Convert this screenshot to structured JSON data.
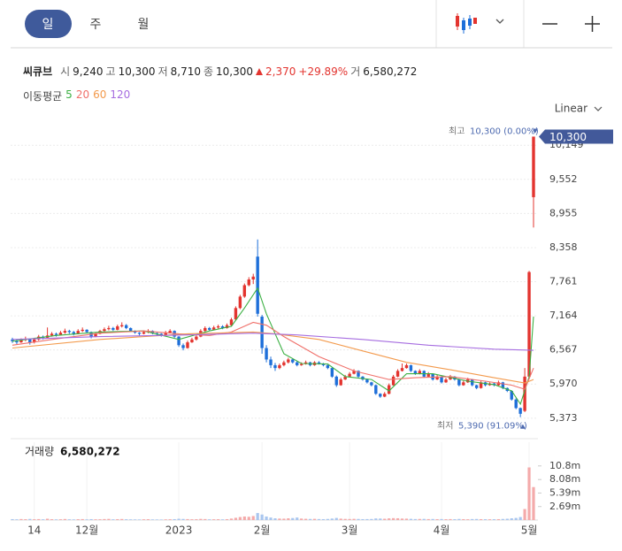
{
  "header": {
    "tabs": [
      "일",
      "주",
      "월"
    ]
  },
  "quote": {
    "name": "씨큐브",
    "open_label": "시",
    "open": "9,240",
    "high_label": "고",
    "high": "10,300",
    "low_label": "저",
    "low": "8,710",
    "close_label": "종",
    "close": "10,300",
    "change": "2,370",
    "change_pct": "+29.89%",
    "volume_label": "거",
    "volume": "6,580,272"
  },
  "ma_legend_title": "이동평균",
  "scale_label": "Linear",
  "chart_data": {
    "type": "candlestick",
    "up_color": "#e3342f",
    "down_color": "#1e6fd9",
    "ylim": [
      5200,
      10400
    ],
    "yticks": [
      {
        "value": 5373,
        "label": "5,373"
      },
      {
        "value": 5970,
        "label": "5,970"
      },
      {
        "value": 6567,
        "label": "6,567"
      },
      {
        "value": 7164,
        "label": "7,164"
      },
      {
        "value": 7761,
        "label": "7,761"
      },
      {
        "value": 8358,
        "label": "8,358"
      },
      {
        "value": 8955,
        "label": "8,955"
      },
      {
        "value": 9552,
        "label": "9,552"
      },
      {
        "value": 10149,
        "label": "10,149"
      }
    ],
    "xticks": [
      {
        "value": 5,
        "label": "14"
      },
      {
        "value": 17,
        "label": "12월"
      },
      {
        "value": 38,
        "label": "2023"
      },
      {
        "value": 57,
        "label": "2월"
      },
      {
        "value": 77,
        "label": "3월"
      },
      {
        "value": 98,
        "label": "4월"
      },
      {
        "value": 118,
        "label": "5월"
      }
    ],
    "last_price": {
      "value": 10300,
      "label": "10,300",
      "color": "#42599a"
    },
    "annotations": {
      "high_label": "최고",
      "high_text": "10,300 (0.00%)",
      "high_value": 10300,
      "low_label": "최저",
      "low_text": "5,390 (91.09%)",
      "low_value": 5390
    },
    "candles": [
      [
        6750,
        6780,
        6690,
        6720
      ],
      [
        6720,
        6750,
        6670,
        6700
      ],
      [
        6700,
        6770,
        6690,
        6740
      ],
      [
        6740,
        6800,
        6720,
        6760
      ],
      [
        6760,
        6770,
        6660,
        6700
      ],
      [
        6700,
        6780,
        6680,
        6750
      ],
      [
        6750,
        6830,
        6730,
        6800
      ],
      [
        6800,
        6820,
        6750,
        6780
      ],
      [
        6780,
        6960,
        6770,
        6820
      ],
      [
        6820,
        6880,
        6800,
        6850
      ],
      [
        6850,
        6870,
        6800,
        6830
      ],
      [
        6830,
        6900,
        6820,
        6870
      ],
      [
        6870,
        6940,
        6850,
        6900
      ],
      [
        6900,
        6920,
        6850,
        6880
      ],
      [
        6880,
        6900,
        6820,
        6850
      ],
      [
        6850,
        6930,
        6840,
        6900
      ],
      [
        6900,
        6960,
        6880,
        6920
      ],
      [
        6920,
        6930,
        6860,
        6880
      ],
      [
        6880,
        6890,
        6770,
        6800
      ],
      [
        6800,
        6870,
        6790,
        6850
      ],
      [
        6850,
        6920,
        6840,
        6900
      ],
      [
        6900,
        6960,
        6880,
        6930
      ],
      [
        6930,
        6990,
        6910,
        6950
      ],
      [
        6950,
        6970,
        6900,
        6920
      ],
      [
        6920,
        7010,
        6910,
        6980
      ],
      [
        6980,
        7050,
        6960,
        7000
      ],
      [
        7000,
        7020,
        6930,
        6950
      ],
      [
        6950,
        6960,
        6880,
        6900
      ],
      [
        6900,
        6910,
        6850,
        6870
      ],
      [
        6870,
        6880,
        6820,
        6850
      ],
      [
        6850,
        6910,
        6840,
        6880
      ],
      [
        6880,
        6930,
        6860,
        6900
      ],
      [
        6900,
        6910,
        6840,
        6860
      ],
      [
        6860,
        6880,
        6820,
        6850
      ],
      [
        6850,
        6860,
        6800,
        6830
      ],
      [
        6830,
        6900,
        6820,
        6870
      ],
      [
        6870,
        6930,
        6860,
        6900
      ],
      [
        6900,
        6910,
        6780,
        6800
      ],
      [
        6800,
        6810,
        6620,
        6650
      ],
      [
        6650,
        6680,
        6560,
        6600
      ],
      [
        6600,
        6730,
        6590,
        6700
      ],
      [
        6700,
        6780,
        6690,
        6750
      ],
      [
        6750,
        6830,
        6730,
        6800
      ],
      [
        6800,
        6930,
        6790,
        6900
      ],
      [
        6900,
        6980,
        6880,
        6950
      ],
      [
        6950,
        6970,
        6900,
        6920
      ],
      [
        6920,
        6990,
        6910,
        6960
      ],
      [
        6960,
        7010,
        6940,
        6980
      ],
      [
        6980,
        7000,
        6930,
        6950
      ],
      [
        6950,
        7030,
        6940,
        7000
      ],
      [
        7000,
        7130,
        6990,
        7100
      ],
      [
        7100,
        7330,
        7090,
        7300
      ],
      [
        7300,
        7530,
        7280,
        7500
      ],
      [
        7500,
        7730,
        7480,
        7700
      ],
      [
        7700,
        7840,
        7680,
        7800
      ],
      [
        7800,
        7900,
        7720,
        7850
      ],
      [
        8200,
        8500,
        7150,
        7200
      ],
      [
        7150,
        7180,
        6500,
        6600
      ],
      [
        6600,
        6650,
        6350,
        6400
      ],
      [
        6400,
        6450,
        6250,
        6300
      ],
      [
        6300,
        6340,
        6200,
        6250
      ],
      [
        6250,
        6330,
        6230,
        6300
      ],
      [
        6300,
        6380,
        6280,
        6350
      ],
      [
        6350,
        6430,
        6330,
        6400
      ],
      [
        6400,
        6420,
        6330,
        6350
      ],
      [
        6350,
        6370,
        6280,
        6300
      ],
      [
        6300,
        6350,
        6290,
        6320
      ],
      [
        6320,
        6380,
        6310,
        6350
      ],
      [
        6350,
        6360,
        6280,
        6300
      ],
      [
        6300,
        6370,
        6290,
        6350
      ],
      [
        6350,
        6370,
        6310,
        6330
      ],
      [
        6330,
        6340,
        6280,
        6300
      ],
      [
        6300,
        6310,
        6230,
        6250
      ],
      [
        6250,
        6260,
        6080,
        6100
      ],
      [
        6100,
        6120,
        5920,
        5950
      ],
      [
        5950,
        6080,
        5940,
        6050
      ],
      [
        6050,
        6130,
        6040,
        6100
      ],
      [
        6100,
        6180,
        6090,
        6150
      ],
      [
        6150,
        6230,
        6140,
        6200
      ],
      [
        6200,
        6210,
        6080,
        6100
      ],
      [
        6100,
        6110,
        6030,
        6050
      ],
      [
        6050,
        6060,
        5980,
        6000
      ],
      [
        6000,
        6010,
        5930,
        5950
      ],
      [
        5950,
        5960,
        5780,
        5800
      ],
      [
        5800,
        5810,
        5730,
        5750
      ],
      [
        5750,
        5830,
        5740,
        5800
      ],
      [
        5800,
        5980,
        5790,
        5950
      ],
      [
        5950,
        6130,
        5940,
        6100
      ],
      [
        6100,
        6230,
        6090,
        6200
      ],
      [
        6200,
        6330,
        6190,
        6250
      ],
      [
        6250,
        6330,
        6240,
        6300
      ],
      [
        6300,
        6310,
        6180,
        6200
      ],
      [
        6200,
        6210,
        6130,
        6150
      ],
      [
        6150,
        6230,
        6140,
        6200
      ],
      [
        6200,
        6210,
        6080,
        6100
      ],
      [
        6100,
        6180,
        6090,
        6150
      ],
      [
        6150,
        6160,
        6030,
        6050
      ],
      [
        6050,
        6130,
        6040,
        6100
      ],
      [
        6100,
        6110,
        5980,
        6000
      ],
      [
        6000,
        6080,
        5990,
        6050
      ],
      [
        6050,
        6130,
        6040,
        6100
      ],
      [
        6100,
        6110,
        6030,
        6050
      ],
      [
        6050,
        6060,
        5930,
        5950
      ],
      [
        5950,
        6030,
        5940,
        6000
      ],
      [
        6000,
        6080,
        5990,
        6050
      ],
      [
        6050,
        6060,
        5930,
        5950
      ],
      [
        5950,
        5960,
        5880,
        5900
      ],
      [
        5900,
        6030,
        5890,
        6000
      ],
      [
        6000,
        6010,
        5930,
        5950
      ],
      [
        5950,
        6000,
        5940,
        5980
      ],
      [
        5980,
        5990,
        5930,
        5950
      ],
      [
        5950,
        6030,
        5940,
        6000
      ],
      [
        6000,
        6010,
        5880,
        5900
      ],
      [
        5900,
        5910,
        5830,
        5850
      ],
      [
        5850,
        5860,
        5680,
        5700
      ],
      [
        5700,
        5720,
        5530,
        5550
      ],
      [
        5550,
        5560,
        5390,
        5450
      ],
      [
        5500,
        6250,
        5480,
        6100
      ],
      [
        6100,
        7950,
        6050,
        7930
      ],
      [
        9240,
        10300,
        8710,
        10300
      ]
    ],
    "moving_averages": [
      {
        "name": "5",
        "color": "#3cb043",
        "x": [
          0,
          10,
          20,
          30,
          38,
          45,
          50,
          53,
          56,
          58,
          62,
          66,
          72,
          76,
          82,
          86,
          90,
          96,
          104,
          110,
          114,
          116,
          118,
          119
        ],
        "values": [
          6720,
          6820,
          6880,
          6900,
          6750,
          6900,
          6980,
          7300,
          7650,
          7200,
          6500,
          6330,
          6320,
          6100,
          6050,
          5850,
          6150,
          6150,
          6020,
          5960,
          5850,
          5620,
          6100,
          7150
        ]
      },
      {
        "name": "20",
        "color": "#f0706a",
        "x": [
          0,
          10,
          20,
          30,
          38,
          45,
          50,
          55,
          58,
          62,
          70,
          78,
          86,
          92,
          100,
          108,
          114,
          117,
          119
        ],
        "values": [
          6650,
          6760,
          6860,
          6900,
          6850,
          6820,
          6880,
          7050,
          7000,
          6800,
          6450,
          6200,
          6050,
          6080,
          6100,
          6020,
          5950,
          5880,
          6250
        ]
      },
      {
        "name": "60",
        "color": "#f39a4c",
        "x": [
          0,
          20,
          40,
          55,
          60,
          70,
          80,
          90,
          100,
          110,
          117,
          119
        ],
        "values": [
          6600,
          6750,
          6850,
          6880,
          6850,
          6750,
          6550,
          6350,
          6220,
          6080,
          5990,
          6050
        ]
      },
      {
        "name": "120",
        "color": "#a66de0",
        "x": [
          0,
          20,
          40,
          55,
          65,
          80,
          95,
          110,
          119
        ],
        "values": [
          6750,
          6800,
          6830,
          6860,
          6830,
          6750,
          6650,
          6580,
          6560
        ]
      }
    ],
    "volume": {
      "title": "거래량",
      "total": "6,580,272",
      "up_color": "#f4aaaa",
      "down_color": "#a9c6ef",
      "ylim": [
        0,
        12000000
      ],
      "yticks": [
        {
          "value": 2690000,
          "label": "2.69m"
        },
        {
          "value": 5390000,
          "label": "5.39m"
        },
        {
          "value": 8080000,
          "label": "8.08m"
        },
        {
          "value": 10800000,
          "label": "10.8m"
        }
      ],
      "values": [
        180000,
        150000,
        200000,
        170000,
        220000,
        160000,
        190000,
        150000,
        260000,
        170000,
        140000,
        160000,
        210000,
        150000,
        130000,
        170000,
        190000,
        140000,
        180000,
        150000,
        160000,
        200000,
        230000,
        150000,
        180000,
        210000,
        160000,
        140000,
        130000,
        120000,
        150000,
        170000,
        130000,
        120000,
        110000,
        140000,
        160000,
        180000,
        260000,
        220000,
        190000,
        160000,
        170000,
        230000,
        200000,
        150000,
        160000,
        170000,
        140000,
        180000,
        300000,
        450000,
        600000,
        700000,
        650000,
        800000,
        1400000,
        1100000,
        700000,
        500000,
        350000,
        300000,
        280000,
        350000,
        400000,
        500000,
        300000,
        250000,
        220000,
        240000,
        200000,
        180000,
        220000,
        300000,
        420000,
        280000,
        230000,
        210000,
        240000,
        220000,
        180000,
        190000,
        210000,
        320000,
        300000,
        260000,
        340000,
        380000,
        360000,
        300000,
        280000,
        240000,
        200000,
        220000,
        230000,
        190000,
        210000,
        180000,
        200000,
        170000,
        190000,
        170000,
        220000,
        180000,
        160000,
        200000,
        210000,
        180000,
        170000,
        160000,
        170000,
        180000,
        220000,
        260000,
        350000,
        420000,
        600000,
        2200000,
        10500000,
        6580272
      ]
    }
  }
}
